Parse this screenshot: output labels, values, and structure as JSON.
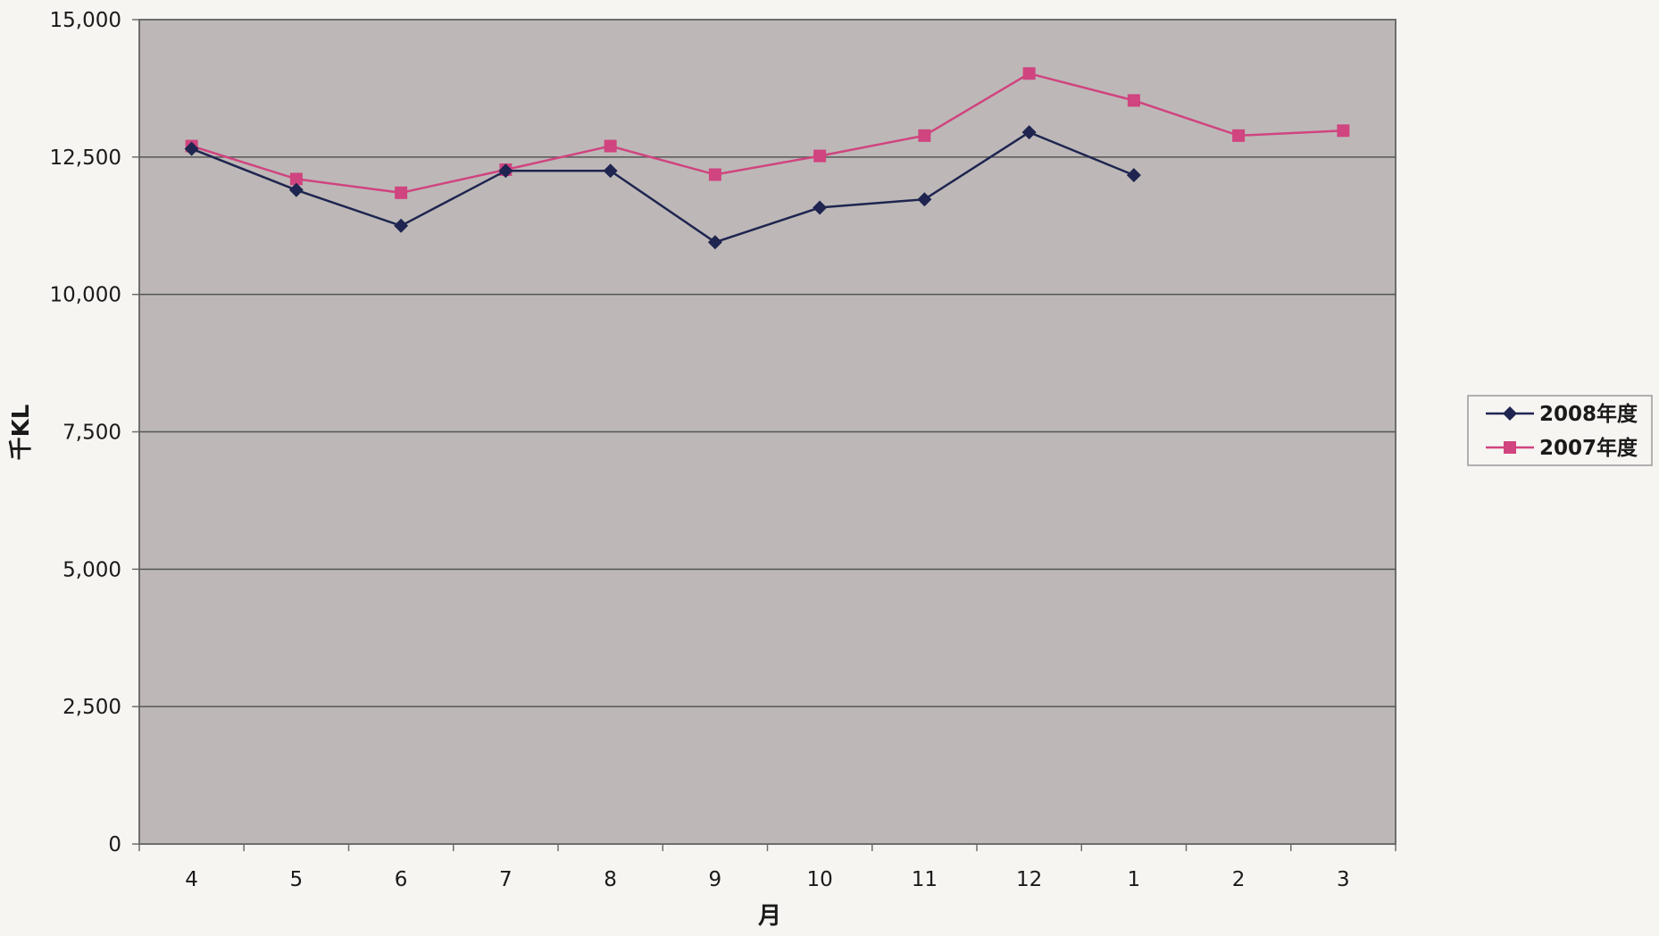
{
  "chart_data": {
    "type": "line",
    "title": "",
    "xlabel": "月",
    "ylabel": "千KL",
    "categories": [
      "4",
      "5",
      "6",
      "7",
      "8",
      "9",
      "10",
      "11",
      "12",
      "1",
      "2",
      "3"
    ],
    "ylim": [
      0,
      15000
    ],
    "yticks": [
      0,
      2500,
      5000,
      7500,
      10000,
      12500,
      15000
    ],
    "ytick_labels": [
      "0",
      "2,500",
      "5,000",
      "7,500",
      "10,000",
      "12,500",
      "15,000"
    ],
    "grid": true,
    "legend_position": "right",
    "series": [
      {
        "name": "2008年度",
        "color": "#1f2550",
        "marker": "diamond",
        "values": [
          12650,
          11900,
          11250,
          12250,
          12250,
          10950,
          11580,
          11730,
          12950,
          12170,
          null,
          null
        ]
      },
      {
        "name": "2007年度",
        "color": "#d0447f",
        "marker": "square",
        "values": [
          12700,
          12100,
          11850,
          12270,
          12700,
          12180,
          12520,
          12890,
          14020,
          13530,
          12890,
          12980
        ]
      }
    ],
    "colors": {
      "plot_background": "#bdb8b7",
      "gridline": "#555555",
      "frame": "#6d6d6d"
    }
  }
}
